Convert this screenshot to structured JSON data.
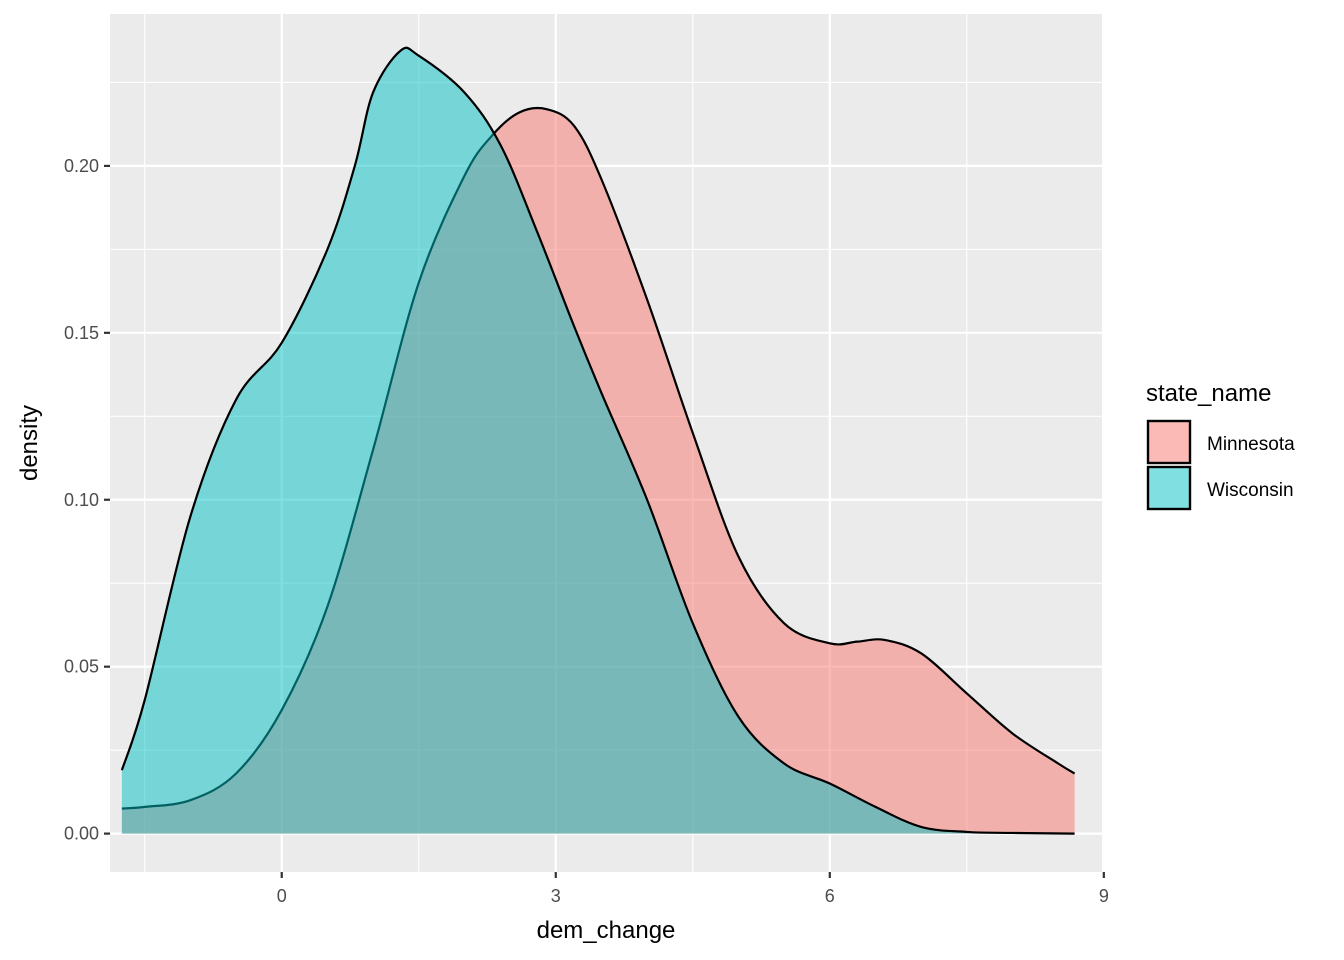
{
  "chart_data": {
    "type": "area",
    "chart_kind": "density",
    "title": "",
    "xlabel": "dem_change",
    "ylabel": "density",
    "xlim": [
      -1.88,
      8.98
    ],
    "ylim": [
      -0.0115,
      0.2455
    ],
    "x_ticks": [
      0,
      3,
      6,
      9
    ],
    "x_tick_labels": [
      "0",
      "3",
      "6",
      "9"
    ],
    "y_ticks": [
      0.0,
      0.05,
      0.1,
      0.15,
      0.2
    ],
    "y_tick_labels": [
      "0.00",
      "0.05",
      "0.10",
      "0.15",
      "0.20"
    ],
    "grid": true,
    "legend": {
      "title": "state_name",
      "position": "right"
    },
    "fill_alpha": 0.5,
    "series": [
      {
        "name": "Minnesota",
        "color": "#F8766D",
        "x": [
          -1.75,
          -1.5,
          -1.0,
          -0.5,
          0.0,
          0.5,
          1.0,
          1.5,
          2.0,
          2.3,
          2.6,
          2.9,
          3.2,
          3.5,
          4.0,
          4.5,
          5.0,
          5.5,
          6.0,
          6.3,
          6.6,
          7.0,
          7.5,
          8.0,
          8.5,
          8.68
        ],
        "y": [
          0.0075,
          0.008,
          0.01,
          0.018,
          0.037,
          0.068,
          0.115,
          0.165,
          0.197,
          0.209,
          0.216,
          0.217,
          0.212,
          0.196,
          0.16,
          0.12,
          0.083,
          0.063,
          0.057,
          0.0575,
          0.058,
          0.054,
          0.042,
          0.03,
          0.021,
          0.018
        ]
      },
      {
        "name": "Wisconsin",
        "color": "#00BFC4",
        "x": [
          -1.75,
          -1.5,
          -1.0,
          -0.5,
          0.0,
          0.5,
          0.8,
          1.0,
          1.3,
          1.5,
          2.0,
          2.4,
          2.8,
          3.2,
          3.5,
          4.0,
          4.5,
          5.0,
          5.5,
          6.0,
          6.5,
          7.0,
          7.5,
          8.0,
          8.68
        ],
        "y": [
          0.019,
          0.04,
          0.095,
          0.13,
          0.147,
          0.175,
          0.2,
          0.222,
          0.2345,
          0.233,
          0.222,
          0.206,
          0.18,
          0.152,
          0.132,
          0.1,
          0.063,
          0.035,
          0.021,
          0.015,
          0.008,
          0.002,
          0.0005,
          0.0002,
          0.0
        ]
      }
    ]
  }
}
